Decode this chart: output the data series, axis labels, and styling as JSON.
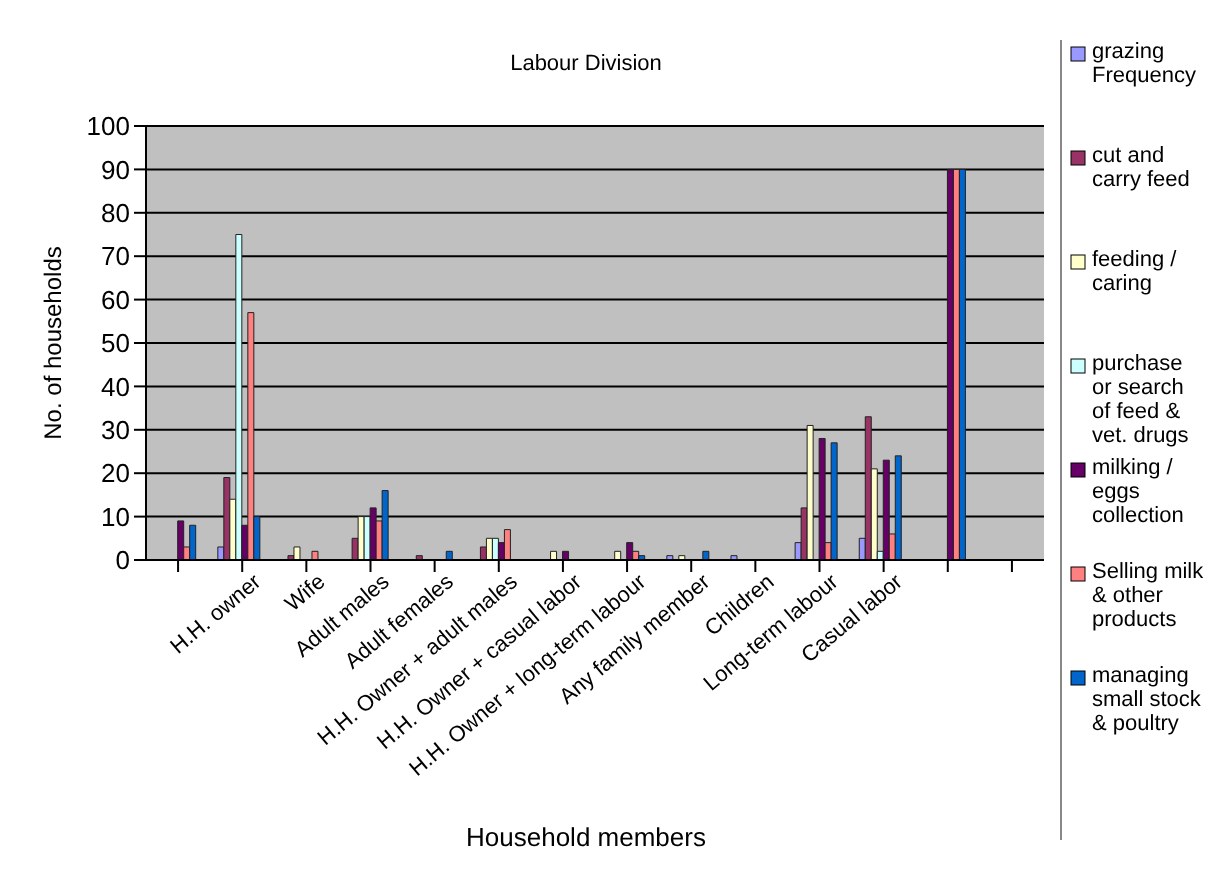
{
  "chart_data": {
    "type": "bar",
    "title": "Labour Division",
    "xlabel": "Household members",
    "ylabel": "No. of households",
    "categories": [
      null,
      "H.H. owner",
      "Wife",
      "Adult males",
      "Adult females",
      "H.H. Owner + adult males",
      "H.H. Owner + casual labor",
      "H.H. Owner + long-term labour",
      "Any family member",
      "Children",
      "Long-term labour",
      "Casual labor",
      null,
      null
    ],
    "series": [
      {
        "name": "grazing Frequency",
        "color": "#9999ff",
        "values": [
          null,
          3,
          null,
          null,
          null,
          null,
          null,
          null,
          1,
          1,
          4,
          5,
          null,
          null
        ]
      },
      {
        "name": "cut and carry feed",
        "color": "#993366",
        "values": [
          null,
          19,
          1,
          5,
          1,
          3,
          null,
          null,
          null,
          null,
          12,
          33,
          null,
          null
        ]
      },
      {
        "name": "feeding / caring",
        "color": "#ffffcc",
        "values": [
          null,
          14,
          3,
          10,
          null,
          5,
          2,
          2,
          1,
          null,
          31,
          21,
          null,
          null
        ]
      },
      {
        "name": "purchase or search of feed & vet. drugs",
        "color": "#ccffff",
        "values": [
          null,
          75,
          null,
          10,
          null,
          5,
          null,
          null,
          null,
          null,
          null,
          2,
          null,
          null
        ]
      },
      {
        "name": "milking / eggs collection",
        "color": "#660066",
        "values": [
          9,
          8,
          null,
          12,
          null,
          4,
          2,
          4,
          null,
          null,
          28,
          23,
          90,
          null
        ]
      },
      {
        "name": "Selling milk & other products",
        "color": "#ff8080",
        "values": [
          3,
          57,
          2,
          9,
          null,
          7,
          null,
          2,
          null,
          null,
          4,
          6,
          90,
          null
        ]
      },
      {
        "name": "managing small stock & poultry",
        "color": "#0066cc",
        "values": [
          8,
          10,
          null,
          16,
          2,
          null,
          null,
          1,
          2,
          null,
          27,
          24,
          90,
          null
        ]
      }
    ],
    "ylim": [
      0,
      100
    ],
    "yticks": [
      0,
      10,
      20,
      30,
      40,
      50,
      60,
      70,
      80,
      90,
      100
    ],
    "grid": "y",
    "legend": "right"
  }
}
